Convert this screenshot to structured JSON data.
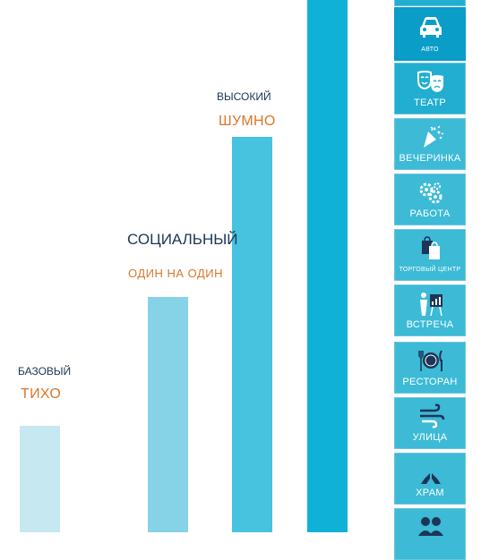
{
  "levels": [
    {
      "level": "БАЗОВЫЙ",
      "mode": "ТИХО"
    },
    {
      "level": "СОЦИАЛЬНЫЙ",
      "mode": "ОДИН НА ОДИН"
    },
    {
      "level": "ВЫСОКИЙ",
      "mode": "ШУМНО"
    }
  ],
  "colors": {
    "bar1": "#c5e8f1",
    "bar2": "#86d3e8",
    "bar3": "#47c2df",
    "bar4": "#0fb2d6",
    "tile": "#21aed0",
    "accent_text": "#d9772b",
    "dark_text": "#1d3557"
  },
  "tiles": [
    {
      "label": "АВТО",
      "icon": "car-icon"
    },
    {
      "label": "ТЕАТР",
      "icon": "theater-masks-icon"
    },
    {
      "label": "ВЕЧЕРИНКА",
      "icon": "party-popper-icon"
    },
    {
      "label": "РАБОТА",
      "icon": "gears-icon"
    },
    {
      "label": "ТОРГОВЫЙ ЦЕНТР",
      "icon": "shopping-bags-icon"
    },
    {
      "label": "ВСТРЕЧА",
      "icon": "presentation-icon"
    },
    {
      "label": "РЕСТОРАН",
      "icon": "plate-cutlery-icon"
    },
    {
      "label": "УЛИЦА",
      "icon": "wind-icon"
    },
    {
      "label": "ХРАМ",
      "icon": "praying-hands-icon"
    },
    {
      "label": "",
      "icon": "people-icon"
    }
  ]
}
